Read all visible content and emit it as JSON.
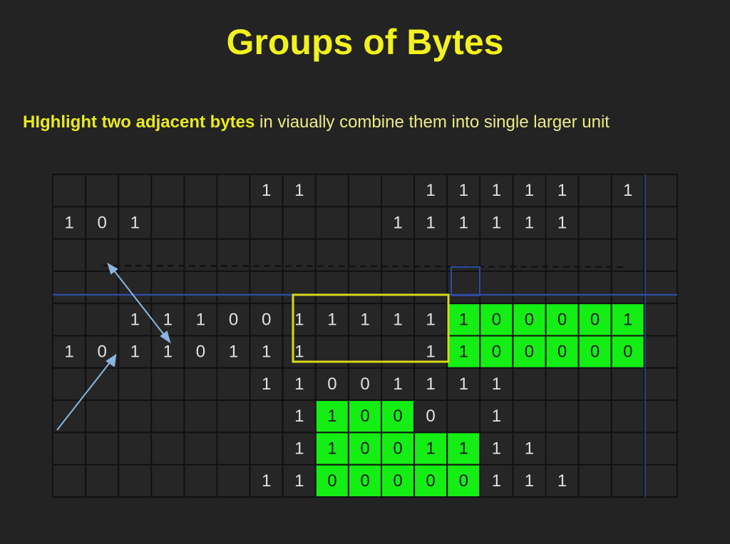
{
  "title": "Groups of Bytes",
  "subtitle": {
    "highlight": "HIghlight two adjacent bytes",
    "rest": " in viaually combine them into single larger unit"
  },
  "colors": {
    "background": "#232323",
    "title": "#f2f21e",
    "highlight_fill": "#14ee14",
    "selection_outline": "#d8d81c",
    "guide_line": "#2c4ca0",
    "arrow": "#8ab6e0",
    "grid_line": "#111111"
  },
  "grid": {
    "rows": 10,
    "cols": 19,
    "cells": [
      [
        "",
        "",
        "",
        "",
        "",
        "",
        "1",
        "1",
        "",
        "",
        "",
        "1",
        "1",
        "1",
        "1",
        "1",
        "",
        "1",
        ""
      ],
      [
        "1",
        "0",
        "1",
        "",
        "",
        "",
        "",
        "",
        "",
        "",
        "1",
        "1",
        "1",
        "1",
        "1",
        "1",
        "",
        "",
        ""
      ],
      [
        "",
        "",
        "",
        "",
        "",
        "",
        "",
        "",
        "",
        "",
        "",
        "",
        "",
        "",
        "",
        "",
        "",
        "",
        ""
      ],
      [
        "",
        "",
        "",
        "",
        "",
        "",
        "",
        "",
        "",
        "",
        "",
        "",
        "",
        "",
        "",
        "",
        "",
        "",
        ""
      ],
      [
        "",
        "",
        "1",
        "1",
        "1",
        "0",
        "0",
        "1",
        "1",
        "1",
        "1",
        "1",
        "1",
        "0",
        "0",
        "0",
        "0",
        "1",
        ""
      ],
      [
        "1",
        "0",
        "1",
        "1",
        "0",
        "1",
        "1",
        "1",
        "",
        "",
        "",
        "1",
        "1",
        "0",
        "0",
        "0",
        "0",
        "0",
        ""
      ],
      [
        "",
        "",
        "",
        "",
        "",
        "",
        "1",
        "1",
        "0",
        "0",
        "1",
        "1",
        "1",
        "1",
        "",
        "",
        "",
        "",
        ""
      ],
      [
        "",
        "",
        "",
        "",
        "",
        "",
        "",
        "1",
        "1",
        "0",
        "0",
        "0",
        "",
        "1",
        "",
        "",
        "",
        "",
        ""
      ],
      [
        "",
        "",
        "",
        "",
        "",
        "",
        "",
        "1",
        "1",
        "0",
        "0",
        "1",
        "1",
        "1",
        "1",
        "",
        "",
        "",
        ""
      ],
      [
        "",
        "",
        "",
        "",
        "",
        "",
        "1",
        "1",
        "0",
        "0",
        "0",
        "0",
        "0",
        "1",
        "1",
        "1",
        "",
        "",
        ""
      ]
    ],
    "highlighted": [
      [
        4,
        12
      ],
      [
        4,
        13
      ],
      [
        4,
        14
      ],
      [
        4,
        15
      ],
      [
        4,
        16
      ],
      [
        4,
        17
      ],
      [
        5,
        12
      ],
      [
        5,
        13
      ],
      [
        5,
        14
      ],
      [
        5,
        15
      ],
      [
        5,
        16
      ],
      [
        5,
        17
      ],
      [
        7,
        8
      ],
      [
        7,
        9
      ],
      [
        7,
        10
      ],
      [
        8,
        8
      ],
      [
        8,
        9
      ],
      [
        8,
        10
      ],
      [
        8,
        11
      ],
      [
        8,
        12
      ],
      [
        9,
        8
      ],
      [
        9,
        9
      ],
      [
        9,
        10
      ],
      [
        9,
        11
      ],
      [
        9,
        12
      ]
    ]
  }
}
